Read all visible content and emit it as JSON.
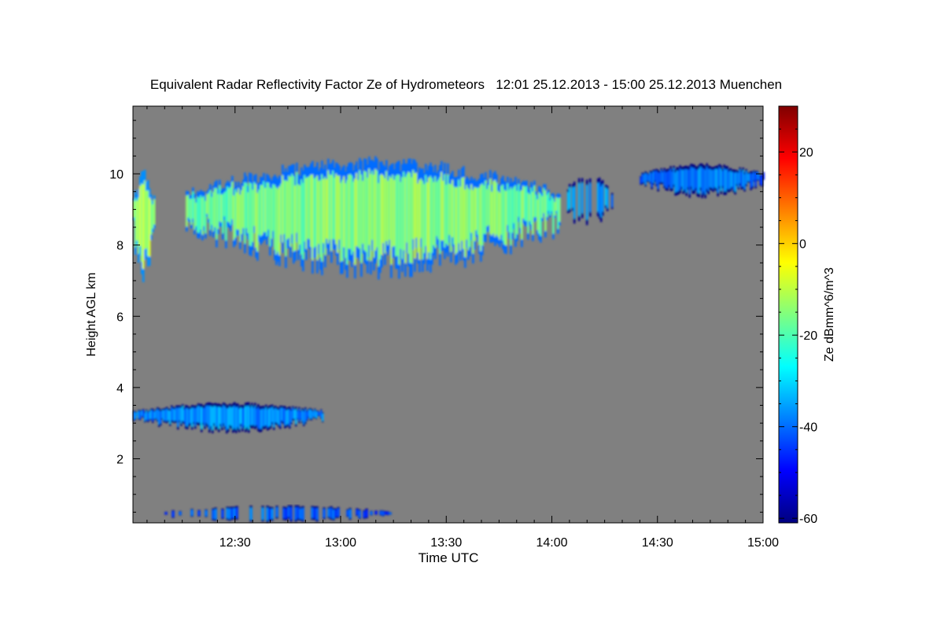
{
  "chart_data": {
    "type": "heatmap",
    "title": "Equivalent Radar Reflectivity Factor Ze of Hydrometeors   12:01 25.12.2013 - 15:00 25.12.2013 Muenchen",
    "xlabel": "Time UTC",
    "ylabel": "Height AGL km",
    "x_ticks": [
      "12:30",
      "13:00",
      "13:30",
      "14:00",
      "14:30",
      "15:00"
    ],
    "x_tick_minutes": [
      30,
      60,
      90,
      120,
      150,
      180
    ],
    "xlim_minutes_after_1200": [
      1,
      180
    ],
    "y_ticks": [
      2,
      4,
      6,
      8,
      10
    ],
    "ylim": [
      0.2,
      11.9
    ],
    "background_color": "#808080",
    "colorbar": {
      "label": "Ze dBmm^6/m^3",
      "ticks": [
        20,
        0,
        -20,
        -40,
        -60
      ],
      "range": [
        -61,
        30
      ],
      "colormap": "jet"
    },
    "features": [
      {
        "name": "early column",
        "t_start": "12:01",
        "t_end": "12:07",
        "base_km": 6.8,
        "top_km": 10.2,
        "ze_dbz": -15
      },
      {
        "name": "main cirrus",
        "t_start": "12:16",
        "t_end": "14:02",
        "base_km": 7.0,
        "top_km": 10.5,
        "ze_dbz": -18
      },
      {
        "name": "detached cells",
        "t_start": "14:03",
        "t_end": "14:17",
        "base_km": 8.4,
        "top_km": 10.0,
        "ze_dbz": -38
      },
      {
        "name": "late layer",
        "t_start": "14:25",
        "t_end": "15:00",
        "base_km": 9.3,
        "top_km": 10.3,
        "ze_dbz": -42
      },
      {
        "name": "mid-level layer",
        "t_start": "12:01",
        "t_end": "12:55",
        "base_km": 2.7,
        "top_km": 3.6,
        "ze_dbz": -40
      },
      {
        "name": "near-surface echoes",
        "t_start": "12:10",
        "t_end": "13:15",
        "base_km": 0.2,
        "top_km": 0.7,
        "ze_dbz": -45
      }
    ]
  }
}
